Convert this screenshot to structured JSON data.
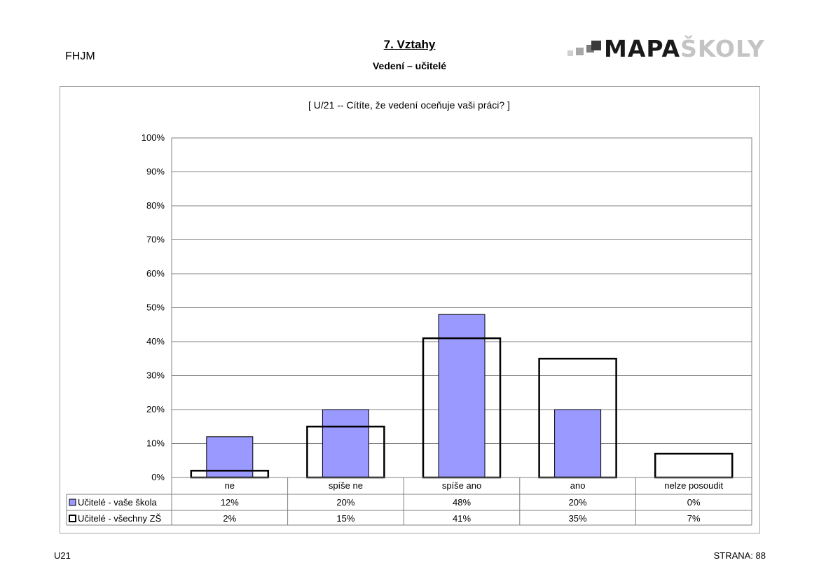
{
  "header": {
    "school_code": "FHJM",
    "section_title": "7. Vztahy",
    "subsection_title": "Vedení – učitelé",
    "logo_dark": "MAPA",
    "logo_light": "ŠKOLY"
  },
  "footer": {
    "code": "U21",
    "page_label": "STRANA: 88"
  },
  "colors": {
    "school_fill": "#9999ff",
    "all_outline": "#000000",
    "grid": "#808080"
  },
  "chart_data": {
    "type": "bar",
    "title": "[ U/21 -- Cítíte, že vedení oceňuje vaši práci? ]",
    "categories": [
      "ne",
      "spíše ne",
      "spíše ano",
      "ano",
      "nelze posoudit"
    ],
    "series": [
      {
        "name": "Učitelé - vaše škola",
        "values": [
          12,
          20,
          48,
          20,
          0
        ],
        "labels": [
          "12%",
          "20%",
          "48%",
          "20%",
          "0%"
        ],
        "style": "filled"
      },
      {
        "name": "Učitelé - všechny ZŠ",
        "values": [
          2,
          15,
          41,
          35,
          7
        ],
        "labels": [
          "2%",
          "15%",
          "41%",
          "35%",
          "7%"
        ],
        "style": "outline"
      }
    ],
    "ylim": [
      0,
      100
    ],
    "yticks": [
      "0%",
      "10%",
      "20%",
      "30%",
      "40%",
      "50%",
      "60%",
      "70%",
      "80%",
      "90%",
      "100%"
    ],
    "grid": true,
    "legend": "data-table"
  }
}
